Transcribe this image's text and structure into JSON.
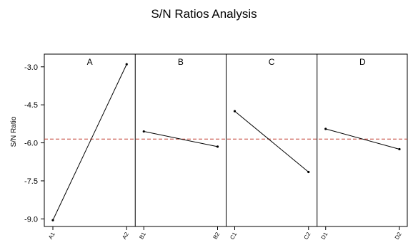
{
  "chart_data": {
    "type": "line",
    "title": "S/N Ratios Analysis",
    "ylabel": "S/N Ratio",
    "xlabel": "",
    "ylim": [
      -9.3,
      -2.5
    ],
    "yticks": [
      -3.0,
      -4.5,
      -6.0,
      -7.5,
      -9.0
    ],
    "ytick_labels": [
      "-3.0",
      "-4.5",
      "-6.0",
      "-7.5",
      "-9.0"
    ],
    "reference_line": {
      "value": -5.85,
      "style": "dashed",
      "color": "#c0392b"
    },
    "grid": false,
    "line_color": "#000000",
    "panels": [
      {
        "name": "A",
        "categories": [
          "A1",
          "A2"
        ],
        "values": [
          -9.05,
          -2.9
        ]
      },
      {
        "name": "B",
        "categories": [
          "B1",
          "B2"
        ],
        "values": [
          -5.55,
          -6.15
        ]
      },
      {
        "name": "C",
        "categories": [
          "C1",
          "C2"
        ],
        "values": [
          -4.75,
          -7.15
        ]
      },
      {
        "name": "D",
        "categories": [
          "D1",
          "D2"
        ],
        "values": [
          -5.45,
          -6.25
        ]
      }
    ]
  }
}
